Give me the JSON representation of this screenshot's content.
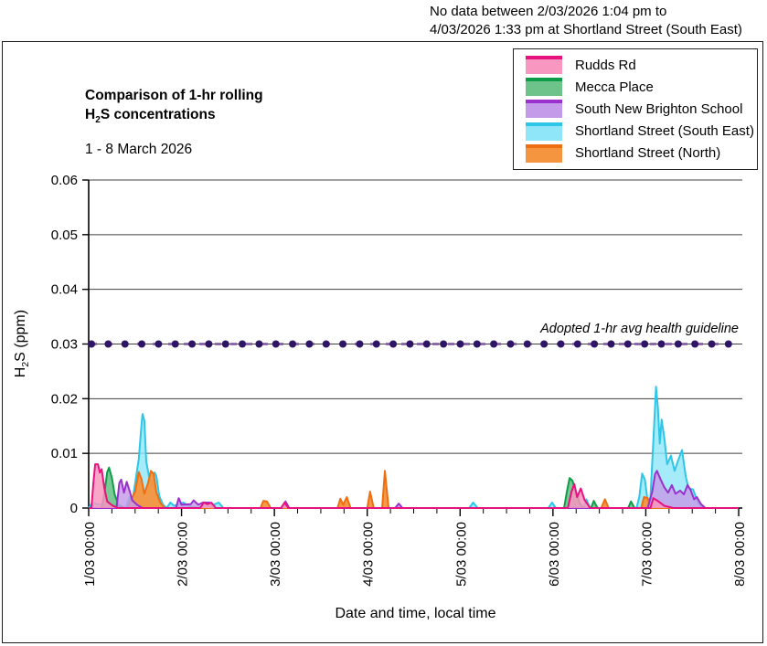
{
  "note": {
    "line1": "No data between 2/03/2026 1:04 pm to",
    "line2": "4/03/2026 1:33 pm at Shortland Street (South East)"
  },
  "header": {
    "title_line1": "Comparison of 1-hr rolling",
    "title_h2s": {
      "pre": "H",
      "sub": "2",
      "post": "S concentrations"
    },
    "subtitle": "1 - 8 March 2026"
  },
  "axes": {
    "y_title": {
      "pre": "H",
      "sub": "2",
      "post": "S (ppm)"
    },
    "x_title": "Date and time, local time"
  },
  "chart_data": {
    "type": "area",
    "title": "Comparison of 1-hr rolling H2S concentrations",
    "subtitle": "1 - 8 March 2026",
    "xlabel": "Date and time, local time",
    "ylabel": "H2S (ppm)",
    "x_axis": {
      "range_days": [
        0,
        7
      ],
      "tick_labels": [
        "1/03 00:00",
        "2/03 00:00",
        "3/03 00:00",
        "4/03 00:00",
        "5/03 00:00",
        "6/03 00:00",
        "7/03 00:00",
        "8/03 00:00"
      ],
      "minor_tick_hours": 6
    },
    "y_axis": {
      "max": 0.06,
      "tick_values": [
        0,
        0.01,
        0.02,
        0.03,
        0.04,
        0.05,
        0.06
      ],
      "tick_labels": [
        "0",
        "0.01",
        "0.02",
        "0.03",
        "0.04",
        "0.05",
        "0.06"
      ]
    },
    "grid": "horizontal",
    "legend_position": "top-right",
    "guideline": {
      "value": 0.03,
      "label": "Adopted 1-hr avg health guideline",
      "marker_count": 39
    },
    "colors": {
      "gridline": "#404040",
      "axis": "#000000",
      "guideline_dash": "#7C4FA0",
      "guideline_dot": "#2F1565"
    },
    "draw_order": [
      3,
      1,
      4,
      2,
      0
    ],
    "series": [
      {
        "name": "Rudds Rd",
        "stroke": "#E8127E",
        "fill": "#F897BF",
        "fill_opacity": 0.85,
        "segments": [
          [
            [
              0,
              0
            ],
            [
              0.03,
              0
            ],
            [
              0.05,
              0.0045
            ],
            [
              0.07,
              0.008
            ],
            [
              0.1,
              0.008
            ],
            [
              0.12,
              0.0065
            ],
            [
              0.14,
              0.0071
            ],
            [
              0.17,
              0.0035
            ],
            [
              0.2,
              0.0012
            ],
            [
              0.26,
              0.0004
            ],
            [
              0.32,
              0
            ],
            [
              1.2,
              0
            ],
            [
              1.24,
              0.001
            ],
            [
              1.28,
              0.0007
            ],
            [
              1.32,
              0.001
            ],
            [
              1.37,
              0
            ],
            [
              2.07,
              0
            ],
            [
              2.11,
              0.001
            ],
            [
              2.15,
              0
            ],
            [
              5.16,
              0
            ],
            [
              5.2,
              0.003
            ],
            [
              5.23,
              0.0044
            ],
            [
              5.26,
              0.002
            ],
            [
              5.3,
              0.0036
            ],
            [
              5.34,
              0.0015
            ],
            [
              5.4,
              0
            ],
            [
              6.05,
              0
            ],
            [
              6.08,
              0.0018
            ],
            [
              6.12,
              0.0014
            ],
            [
              6.2,
              0.0004
            ],
            [
              6.3,
              0
            ],
            [
              7,
              0
            ]
          ]
        ]
      },
      {
        "name": "Mecca Place",
        "stroke": "#0E9C48",
        "fill": "#6DC389",
        "fill_opacity": 0.9,
        "segments": [
          [
            [
              0,
              0
            ],
            [
              0.14,
              0
            ],
            [
              0.17,
              0.0028
            ],
            [
              0.2,
              0.0066
            ],
            [
              0.22,
              0.0074
            ],
            [
              0.25,
              0.0055
            ],
            [
              0.28,
              0.0025
            ],
            [
              0.32,
              0.0006
            ],
            [
              0.38,
              0
            ],
            [
              5.12,
              0
            ],
            [
              5.15,
              0.003
            ],
            [
              5.18,
              0.0055
            ],
            [
              5.21,
              0.005
            ],
            [
              5.25,
              0.0028
            ],
            [
              5.29,
              0.0008
            ],
            [
              5.33,
              0
            ],
            [
              5.41,
              0
            ],
            [
              5.44,
              0.0013
            ],
            [
              5.48,
              0
            ],
            [
              5.81,
              0
            ],
            [
              5.84,
              0.0012
            ],
            [
              5.88,
              0
            ],
            [
              6.01,
              0
            ],
            [
              6.04,
              0.001
            ],
            [
              6.07,
              0
            ],
            [
              7,
              0
            ]
          ]
        ]
      },
      {
        "name": "South New Brighton School",
        "stroke": "#9B30CE",
        "fill": "#C49BE8",
        "fill_opacity": 0.82,
        "segments": [
          [
            [
              0,
              0
            ],
            [
              0.3,
              0
            ],
            [
              0.33,
              0.0046
            ],
            [
              0.35,
              0.0052
            ],
            [
              0.38,
              0.0028
            ],
            [
              0.41,
              0.0048
            ],
            [
              0.44,
              0.0032
            ],
            [
              0.47,
              0.0014
            ],
            [
              0.52,
              0.0006
            ],
            [
              0.58,
              0
            ],
            [
              0.94,
              0
            ],
            [
              0.97,
              0.0018
            ],
            [
              1,
              0.0006
            ],
            [
              1.1,
              0.0007
            ],
            [
              1.13,
              0.0014
            ],
            [
              1.18,
              0.0006
            ],
            [
              1.23,
              0.001
            ],
            [
              1.3,
              0.001
            ],
            [
              1.36,
              0
            ],
            [
              2.08,
              0
            ],
            [
              2.12,
              0.0012
            ],
            [
              2.16,
              0
            ],
            [
              3.3,
              0
            ],
            [
              3.34,
              0.0008
            ],
            [
              3.38,
              0
            ],
            [
              6.02,
              0
            ],
            [
              6.07,
              0.003
            ],
            [
              6.1,
              0.0062
            ],
            [
              6.12,
              0.0068
            ],
            [
              6.16,
              0.0052
            ],
            [
              6.2,
              0.0038
            ],
            [
              6.24,
              0.0028
            ],
            [
              6.28,
              0.0042
            ],
            [
              6.32,
              0.0026
            ],
            [
              6.37,
              0.0032
            ],
            [
              6.41,
              0.0025
            ],
            [
              6.45,
              0.0042
            ],
            [
              6.48,
              0.0034
            ],
            [
              6.52,
              0.0016
            ],
            [
              6.55,
              0.002
            ],
            [
              6.59,
              0.0008
            ],
            [
              6.64,
              0
            ],
            [
              7,
              0
            ]
          ]
        ]
      },
      {
        "name": "Shortland Street (South East)",
        "stroke": "#2EC6E8",
        "fill": "#8FE6F8",
        "fill_opacity": 0.8,
        "segments": [
          [
            [
              0,
              0
            ],
            [
              0.04,
              0.001
            ],
            [
              0.09,
              0.0007
            ],
            [
              0.2,
              0.0005
            ],
            [
              0.3,
              0.0006
            ],
            [
              0.4,
              0
            ],
            [
              0.44,
              0.002
            ],
            [
              0.47,
              0.0012
            ],
            [
              0.5,
              0.0045
            ],
            [
              0.54,
              0.009
            ],
            [
              0.57,
              0.0155
            ],
            [
              0.58,
              0.0172
            ],
            [
              0.6,
              0.016
            ],
            [
              0.62,
              0.0085
            ],
            [
              0.65,
              0.0058
            ],
            [
              0.68,
              0.004
            ],
            [
              0.71,
              0.0065
            ],
            [
              0.73,
              0.0058
            ],
            [
              0.76,
              0.0022
            ],
            [
              0.8,
              0.0006
            ],
            [
              0.84,
              0
            ],
            [
              0.88,
              0.001
            ],
            [
              0.92,
              0.0004
            ],
            [
              1.02,
              0.001
            ],
            [
              1.07,
              0.0004
            ],
            [
              1.2,
              0
            ],
            [
              1.32,
              0.0004
            ],
            [
              1.4,
              0.001
            ],
            [
              1.45,
              0
            ],
            [
              1.54,
              0
            ]
          ],
          [
            [
              3.57,
              0
            ],
            [
              4.1,
              0
            ],
            [
              4.14,
              0.001
            ],
            [
              4.19,
              0
            ],
            [
              4.95,
              0
            ],
            [
              4.99,
              0.001
            ],
            [
              5.03,
              0
            ],
            [
              5.33,
              0
            ],
            [
              5.36,
              0.0016
            ],
            [
              5.4,
              0
            ],
            [
              5.9,
              0
            ],
            [
              5.93,
              0.002
            ],
            [
              5.96,
              0.0063
            ],
            [
              5.99,
              0.0052
            ],
            [
              6.02,
              0.0012
            ],
            [
              6.05,
              0.002
            ],
            [
              6.08,
              0.012
            ],
            [
              6.11,
              0.0222
            ],
            [
              6.13,
              0.0185
            ],
            [
              6.15,
              0.0118
            ],
            [
              6.17,
              0.0162
            ],
            [
              6.2,
              0.0128
            ],
            [
              6.23,
              0.008
            ],
            [
              6.27,
              0.0096
            ],
            [
              6.31,
              0.0068
            ],
            [
              6.35,
              0.0088
            ],
            [
              6.39,
              0.0106
            ],
            [
              6.43,
              0.0058
            ],
            [
              6.46,
              0.0036
            ],
            [
              6.51,
              0.0034
            ],
            [
              6.56,
              0.001
            ],
            [
              6.61,
              0
            ],
            [
              7,
              0
            ]
          ]
        ]
      },
      {
        "name": "Shortland Street (North)",
        "stroke": "#EE6F12",
        "fill": "#F6953F",
        "fill_opacity": 0.95,
        "segments": [
          [
            [
              0,
              0
            ],
            [
              0.42,
              0
            ],
            [
              0.46,
              0.0016
            ],
            [
              0.5,
              0.003
            ],
            [
              0.54,
              0.0066
            ],
            [
              0.57,
              0.0052
            ],
            [
              0.6,
              0.0026
            ],
            [
              0.64,
              0.0046
            ],
            [
              0.67,
              0.0068
            ],
            [
              0.7,
              0.0062
            ],
            [
              0.73,
              0.0028
            ],
            [
              0.77,
              0.001
            ],
            [
              0.82,
              0
            ],
            [
              1.85,
              0
            ],
            [
              1.88,
              0.0013
            ],
            [
              1.92,
              0.0012
            ],
            [
              1.96,
              0
            ],
            [
              2.68,
              0
            ],
            [
              2.71,
              0.0017
            ],
            [
              2.74,
              0.0006
            ],
            [
              2.78,
              0.002
            ],
            [
              2.82,
              0
            ],
            [
              3,
              0
            ],
            [
              3.03,
              0.003
            ],
            [
              3.07,
              0
            ],
            [
              3.16,
              0
            ],
            [
              3.19,
              0.0068
            ],
            [
              3.23,
              0
            ],
            [
              5.52,
              0
            ],
            [
              5.56,
              0.0016
            ],
            [
              5.6,
              0
            ],
            [
              5.95,
              0
            ],
            [
              5.98,
              0.002
            ],
            [
              6.02,
              0.0018
            ],
            [
              6.06,
              0
            ],
            [
              7,
              0
            ]
          ]
        ]
      }
    ]
  }
}
